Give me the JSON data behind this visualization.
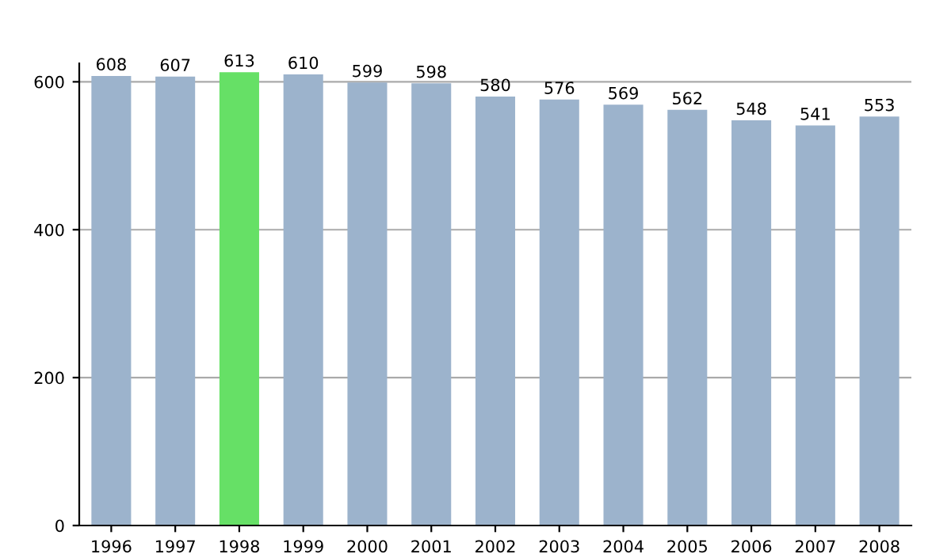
{
  "chart_data": {
    "type": "bar",
    "categories": [
      "1996",
      "1997",
      "1998",
      "1999",
      "2000",
      "2001",
      "2002",
      "2003",
      "2004",
      "2005",
      "2006",
      "2007",
      "2008"
    ],
    "values": [
      608,
      607,
      613,
      610,
      599,
      598,
      580,
      576,
      569,
      562,
      548,
      541,
      553
    ],
    "colors": [
      "#9cb3cc",
      "#9cb3cc",
      "#66e066",
      "#9cb3cc",
      "#9cb3cc",
      "#9cb3cc",
      "#9cb3cc",
      "#9cb3cc",
      "#9cb3cc",
      "#9cb3cc",
      "#9cb3cc",
      "#9cb3cc",
      "#9cb3cc"
    ],
    "ylim": [
      0,
      625
    ],
    "yticks": [
      0,
      200,
      400,
      600
    ],
    "grid": "y",
    "data_labels": true
  }
}
